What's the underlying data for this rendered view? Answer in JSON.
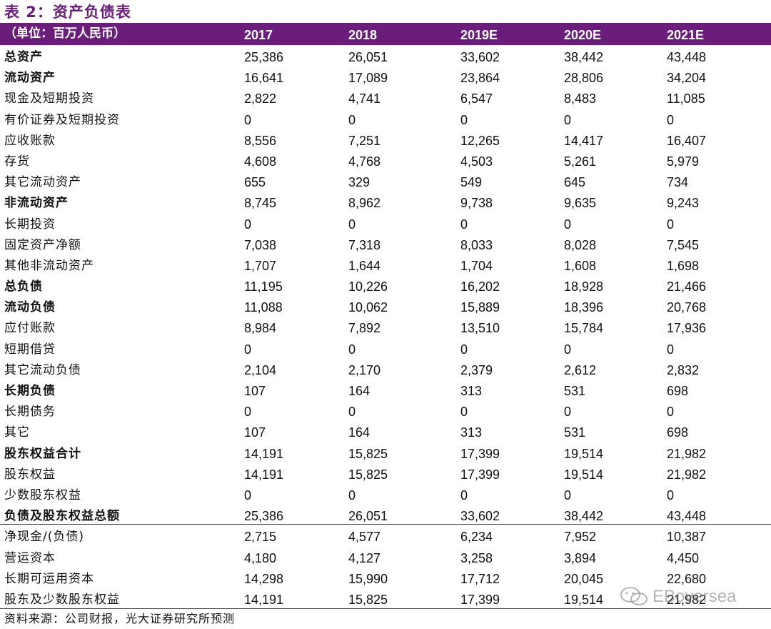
{
  "title": "表 2：资产负债表",
  "header": {
    "unit": "（单位：百万人民币）",
    "years": [
      "2017",
      "2018",
      "2019E",
      "2020E",
      "2021E"
    ]
  },
  "rows": [
    {
      "label": "总资产",
      "bold": true,
      "values": [
        "25,386",
        "26,051",
        "33,602",
        "38,442",
        "43,448"
      ]
    },
    {
      "label": "流动资产",
      "bold": true,
      "values": [
        "16,641",
        "17,089",
        "23,864",
        "28,806",
        "34,204"
      ]
    },
    {
      "label": "现金及短期投资",
      "bold": false,
      "values": [
        "2,822",
        "4,741",
        "6,547",
        "8,483",
        "11,085"
      ]
    },
    {
      "label": "有价证券及短期投资",
      "bold": false,
      "values": [
        "0",
        "0",
        "0",
        "0",
        "0"
      ]
    },
    {
      "label": "应收账款",
      "bold": false,
      "values": [
        "8,556",
        "7,251",
        "12,265",
        "14,417",
        "16,407"
      ]
    },
    {
      "label": "存货",
      "bold": false,
      "values": [
        "4,608",
        "4,768",
        "4,503",
        "5,261",
        "5,979"
      ]
    },
    {
      "label": "其它流动资产",
      "bold": false,
      "values": [
        "655",
        "329",
        "549",
        "645",
        "734"
      ]
    },
    {
      "label": "非流动资产",
      "bold": true,
      "values": [
        "8,745",
        "8,962",
        "9,738",
        "9,635",
        "9,243"
      ]
    },
    {
      "label": "长期投资",
      "bold": false,
      "values": [
        "0",
        "0",
        "0",
        "0",
        "0"
      ]
    },
    {
      "label": "固定资产净额",
      "bold": false,
      "values": [
        "7,038",
        "7,318",
        "8,033",
        "8,028",
        "7,545"
      ]
    },
    {
      "label": "其他非流动资产",
      "bold": false,
      "values": [
        "1,707",
        "1,644",
        "1,704",
        "1,608",
        "1,698"
      ]
    },
    {
      "label": "总负债",
      "bold": true,
      "values": [
        "11,195",
        "10,226",
        "16,202",
        "18,928",
        "21,466"
      ]
    },
    {
      "label": "流动负债",
      "bold": true,
      "values": [
        "11,088",
        "10,062",
        "15,889",
        "18,396",
        "20,768"
      ]
    },
    {
      "label": "应付账款",
      "bold": false,
      "values": [
        "8,984",
        "7,892",
        "13,510",
        "15,784",
        "17,936"
      ]
    },
    {
      "label": "短期借贷",
      "bold": false,
      "values": [
        "0",
        "0",
        "0",
        "0",
        "0"
      ]
    },
    {
      "label": "其它流动负债",
      "bold": false,
      "values": [
        "2,104",
        "2,170",
        "2,379",
        "2,612",
        "2,832"
      ]
    },
    {
      "label": "长期负债",
      "bold": true,
      "values": [
        "107",
        "164",
        "313",
        "531",
        "698"
      ]
    },
    {
      "label": "长期债务",
      "bold": false,
      "values": [
        "0",
        "0",
        "0",
        "0",
        "0"
      ]
    },
    {
      "label": "其它",
      "bold": false,
      "values": [
        "107",
        "164",
        "313",
        "531",
        "698"
      ]
    },
    {
      "label": "股东权益合计",
      "bold": true,
      "values": [
        "14,191",
        "15,825",
        "17,399",
        "19,514",
        "21,982"
      ]
    },
    {
      "label": "股东权益",
      "bold": false,
      "values": [
        "14,191",
        "15,825",
        "17,399",
        "19,514",
        "21,982"
      ]
    },
    {
      "label": "少数股东权益",
      "bold": false,
      "values": [
        "0",
        "0",
        "0",
        "0",
        "0"
      ]
    },
    {
      "label": "负债及股东权益总额",
      "bold": true,
      "values": [
        "25,386",
        "26,051",
        "33,602",
        "38,442",
        "43,448"
      ]
    },
    {
      "label": "净现金/(负债)",
      "bold": false,
      "values": [
        "2,715",
        "4,577",
        "6,234",
        "7,952",
        "10,387"
      ]
    },
    {
      "label": "营运资本",
      "bold": false,
      "values": [
        "4,180",
        "4,127",
        "3,258",
        "3,894",
        "4,450"
      ]
    },
    {
      "label": "长期可运用资本",
      "bold": false,
      "values": [
        "14,298",
        "15,990",
        "17,712",
        "20,045",
        "22,680"
      ]
    },
    {
      "label": "股东及少数股东权益",
      "bold": false,
      "values": [
        "14,191",
        "15,825",
        "17,399",
        "19,514",
        "21,982"
      ]
    }
  ],
  "source": "资料来源：公司财报，光大证券研究所预测",
  "watermark": {
    "text": "EBoversea",
    "icon": "wechat-icon"
  },
  "colors": {
    "header_bg": "#6b1d7c",
    "title": "#6b1d7c"
  }
}
